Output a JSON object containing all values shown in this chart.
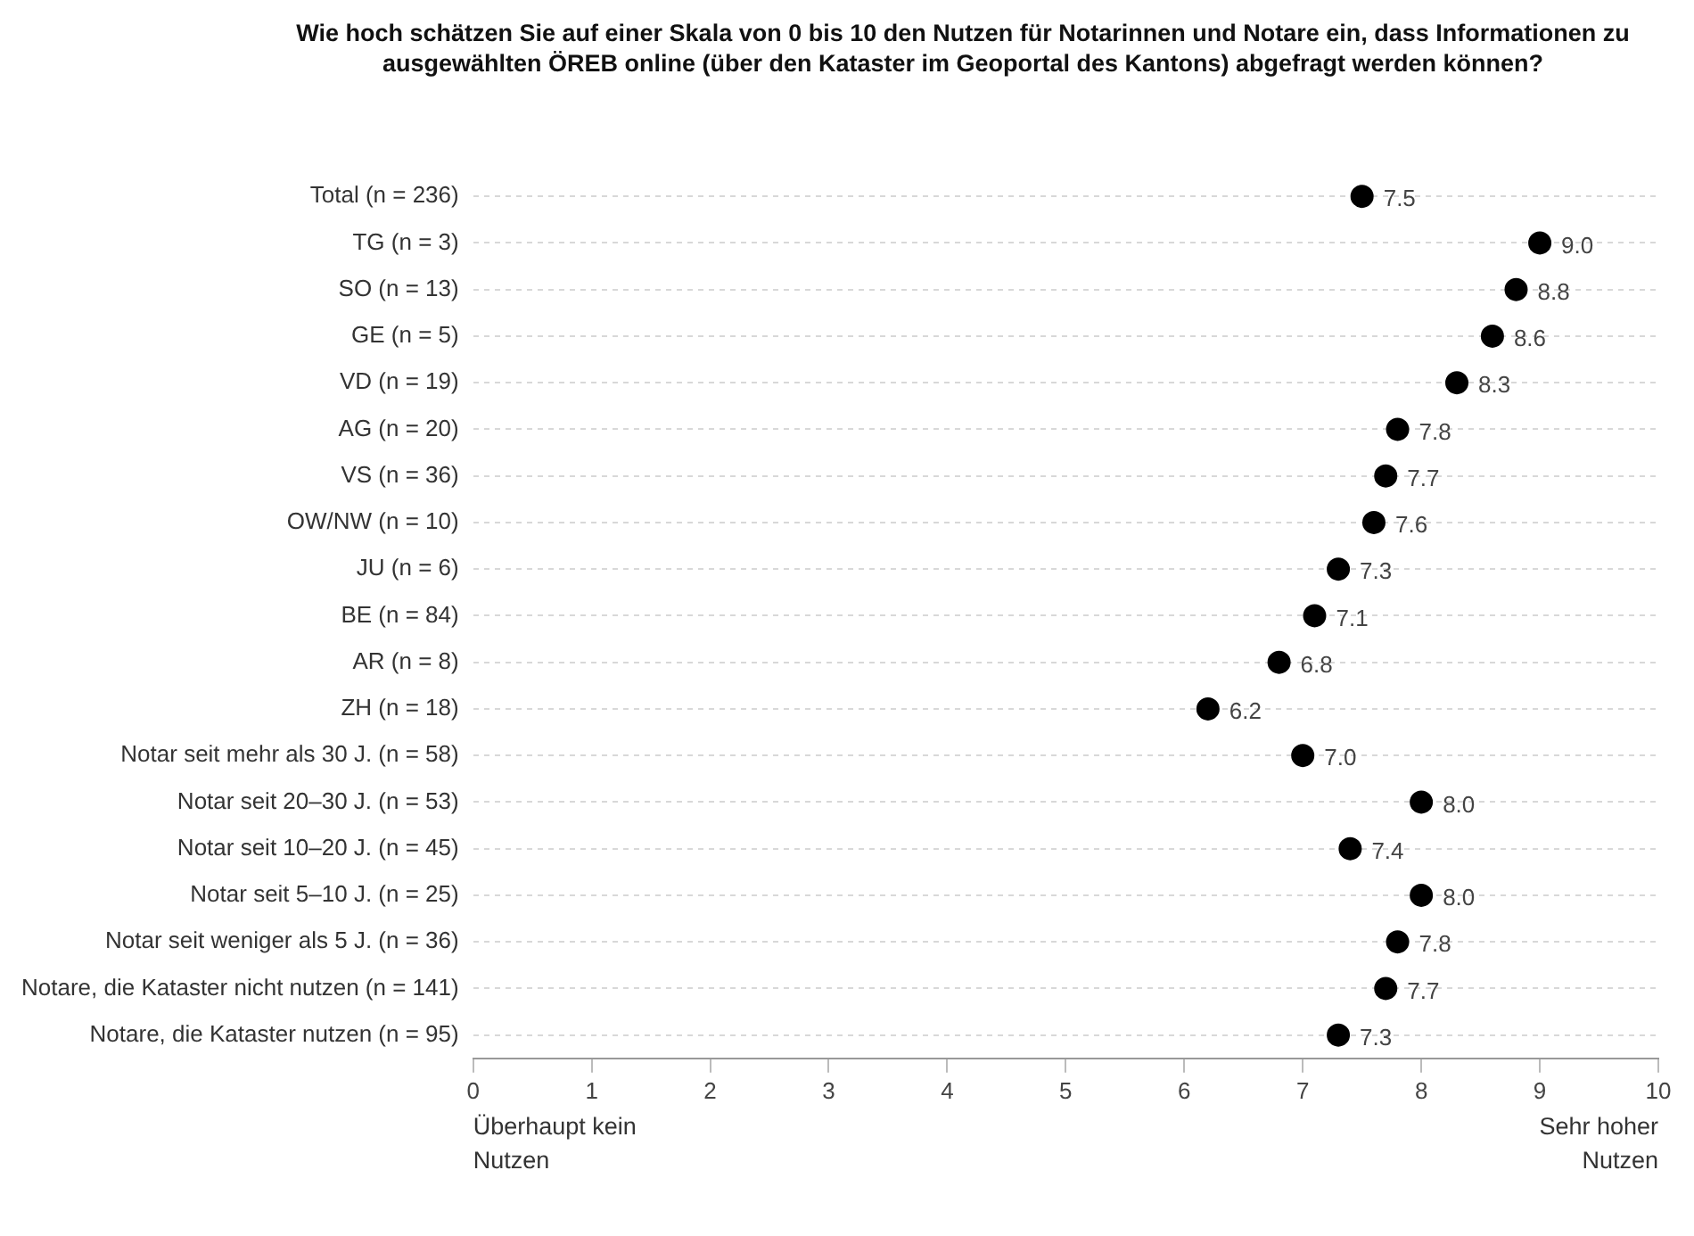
{
  "chart_data": {
    "type": "scatter",
    "orientation": "horizontal",
    "title": "Wie hoch schätzen Sie auf einer Skala von 0 bis 10 den Nutzen für Notarinnen und Notare ein, dass Informationen zu ausgewählten ÖREB online (über den Kataster im Geoportal des Kantons) abgefragt werden können?",
    "categories": [
      "Total (n = 236)",
      "TG (n = 3)",
      "SO (n = 13)",
      "GE (n = 5)",
      "VD (n = 19)",
      "AG (n = 20)",
      "VS (n = 36)",
      "OW/NW (n = 10)",
      "JU (n = 6)",
      "BE (n = 84)",
      "AR (n = 8)",
      "ZH (n = 18)",
      "Notar seit mehr als 30 J. (n = 58)",
      "Notar seit 20–30 J. (n = 53)",
      "Notar seit 10–20 J. (n = 45)",
      "Notar seit 5–10 J. (n = 25)",
      "Notar seit weniger als 5 J. (n = 36)",
      "Notare, die Kataster nicht nutzen (n = 141)",
      "Notare, die Kataster nutzen (n = 95)"
    ],
    "values": [
      7.5,
      9.0,
      8.8,
      8.6,
      8.3,
      7.8,
      7.7,
      7.6,
      7.3,
      7.1,
      6.8,
      6.2,
      7.0,
      8.0,
      7.4,
      8.0,
      7.8,
      7.7,
      7.3
    ],
    "value_labels": [
      "7.5",
      "9.0",
      "8.8",
      "8.6",
      "8.3",
      "7.8",
      "7.7",
      "7.6",
      "7.3",
      "7.1",
      "6.8",
      "6.2",
      "7.0",
      "8.0",
      "7.4",
      "8.0",
      "7.8",
      "7.7",
      "7.3"
    ],
    "color": "#000000",
    "marker": "circle",
    "grid": "y",
    "xlim": [
      0,
      10
    ],
    "xticks": [
      0,
      1,
      2,
      3,
      4,
      5,
      6,
      7,
      8,
      9,
      10
    ],
    "annotations": [
      "Überhaupt kein Nutzen",
      "Sehr hoher Nutzen"
    ]
  }
}
